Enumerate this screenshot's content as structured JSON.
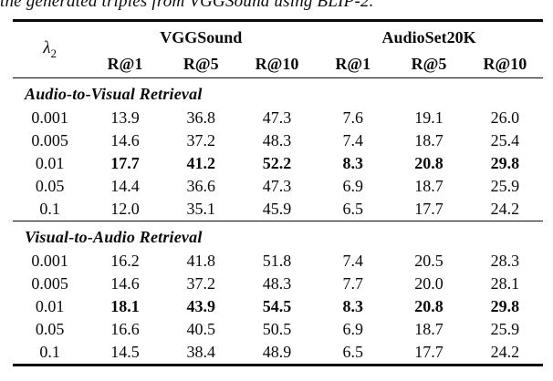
{
  "caption_fragment": "the generated triples from VGGSound using BLIP-2.",
  "table": {
    "lambda_header": {
      "symbol": "λ",
      "sub": "2"
    },
    "col_groups": [
      {
        "label": "VGGSound"
      },
      {
        "label": "AudioSet20K"
      }
    ],
    "sub_headers": [
      "R@1",
      "R@5",
      "R@10",
      "R@1",
      "R@5",
      "R@10"
    ],
    "sections": [
      {
        "title": "Audio-to-Visual Retrieval",
        "rows": [
          {
            "lambda": "0.001",
            "values": [
              "13.9",
              "36.8",
              "47.3",
              "7.6",
              "19.1",
              "26.0"
            ],
            "bold": false
          },
          {
            "lambda": "0.005",
            "values": [
              "14.6",
              "37.2",
              "48.3",
              "7.4",
              "18.7",
              "25.4"
            ],
            "bold": false
          },
          {
            "lambda": "0.01",
            "values": [
              "17.7",
              "41.2",
              "52.2",
              "8.3",
              "20.8",
              "29.8"
            ],
            "bold": true
          },
          {
            "lambda": "0.05",
            "values": [
              "14.4",
              "36.6",
              "47.3",
              "6.9",
              "18.7",
              "25.9"
            ],
            "bold": false
          },
          {
            "lambda": "0.1",
            "values": [
              "12.0",
              "35.1",
              "45.9",
              "6.5",
              "17.7",
              "24.2"
            ],
            "bold": false
          }
        ]
      },
      {
        "title": "Visual-to-Audio Retrieval",
        "rows": [
          {
            "lambda": "0.001",
            "values": [
              "16.2",
              "41.8",
              "51.8",
              "7.4",
              "20.5",
              "28.3"
            ],
            "bold": false
          },
          {
            "lambda": "0.005",
            "values": [
              "14.6",
              "37.2",
              "48.3",
              "7.7",
              "20.0",
              "28.1"
            ],
            "bold": false
          },
          {
            "lambda": "0.01",
            "values": [
              "18.1",
              "43.9",
              "54.5",
              "8.3",
              "20.8",
              "29.8"
            ],
            "bold": true
          },
          {
            "lambda": "0.05",
            "values": [
              "16.6",
              "40.5",
              "50.5",
              "6.9",
              "18.7",
              "25.9"
            ],
            "bold": false
          },
          {
            "lambda": "0.1",
            "values": [
              "14.5",
              "38.4",
              "48.9",
              "6.5",
              "17.7",
              "24.2"
            ],
            "bold": false
          }
        ]
      }
    ]
  }
}
